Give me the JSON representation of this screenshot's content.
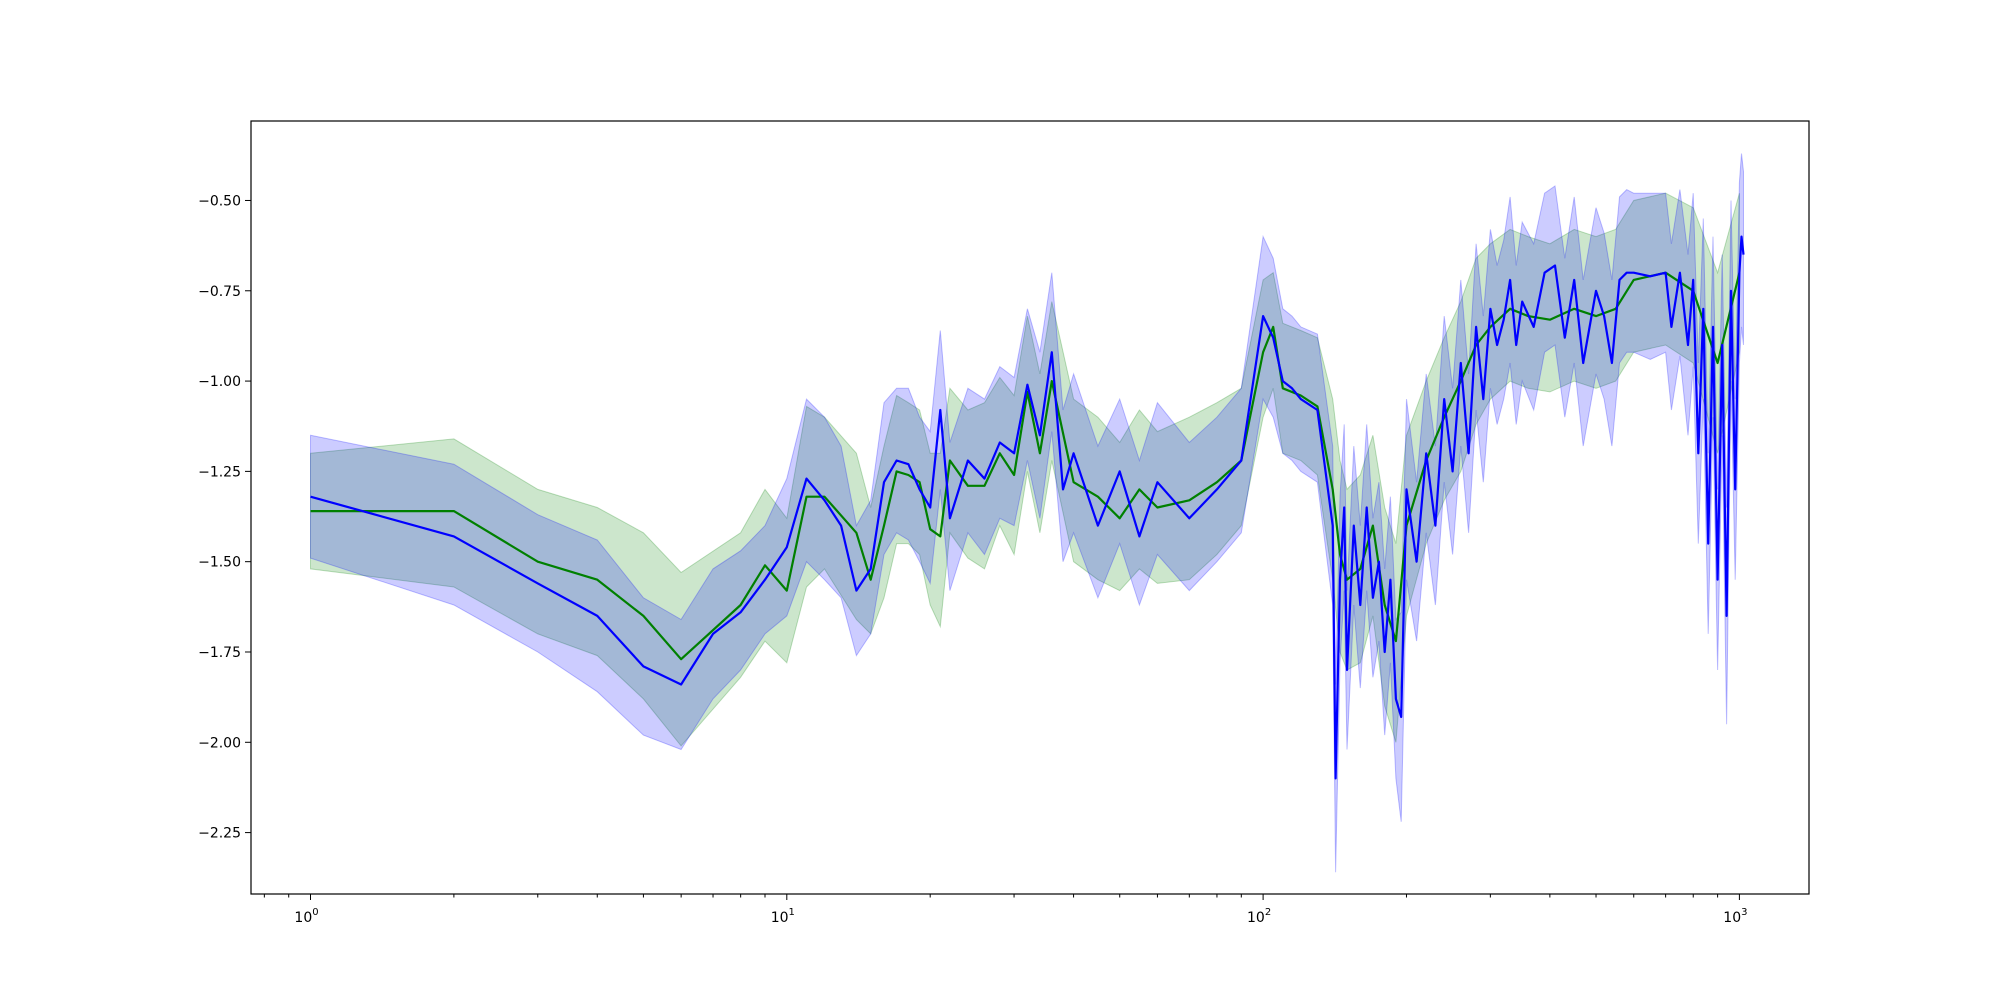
{
  "chart_data": {
    "type": "line",
    "title": "",
    "xlabel": "",
    "ylabel": "",
    "xscale": "log",
    "xlim": [
      0.75,
      1400
    ],
    "ylim": [
      -2.42,
      -0.28
    ],
    "grid": false,
    "legend": "none",
    "x_ticks": [
      {
        "value": 1,
        "base": "10",
        "exp": "0"
      },
      {
        "value": 10,
        "base": "10",
        "exp": "1"
      },
      {
        "value": 100,
        "base": "10",
        "exp": "2"
      },
      {
        "value": 1000,
        "base": "10",
        "exp": "3"
      }
    ],
    "y_ticks": [
      {
        "value": -0.5,
        "label": "−0.50"
      },
      {
        "value": -0.75,
        "label": "−0.75"
      },
      {
        "value": -1.0,
        "label": "−1.00"
      },
      {
        "value": -1.25,
        "label": "−1.25"
      },
      {
        "value": -1.5,
        "label": "−1.50"
      },
      {
        "value": -1.75,
        "label": "−1.75"
      },
      {
        "value": -2.0,
        "label": "−2.00"
      },
      {
        "value": -2.25,
        "label": "−2.25"
      }
    ],
    "series": [
      {
        "color": "#008000",
        "band_color": "#008000",
        "band_opacity": 0.2,
        "x": [
          1,
          2,
          3,
          4,
          5,
          6,
          8,
          9,
          10,
          11,
          12,
          14,
          15,
          16,
          17,
          18,
          19,
          20,
          21,
          22,
          24,
          26,
          28,
          30,
          32,
          34,
          36,
          40,
          45,
          50,
          55,
          60,
          70,
          80,
          90,
          100,
          105,
          110,
          120,
          130,
          140,
          145,
          150,
          160,
          170,
          180,
          190,
          200,
          220,
          240,
          260,
          280,
          300,
          330,
          360,
          400,
          450,
          500,
          550,
          600,
          700,
          800,
          900,
          1000
        ],
        "y": [
          -1.36,
          -1.36,
          -1.5,
          -1.55,
          -1.65,
          -1.77,
          -1.62,
          -1.51,
          -1.58,
          -1.32,
          -1.32,
          -1.42,
          -1.55,
          -1.4,
          -1.25,
          -1.26,
          -1.28,
          -1.41,
          -1.43,
          -1.22,
          -1.29,
          -1.29,
          -1.2,
          -1.26,
          -1.03,
          -1.2,
          -1.0,
          -1.28,
          -1.32,
          -1.38,
          -1.3,
          -1.35,
          -1.33,
          -1.28,
          -1.22,
          -0.92,
          -0.85,
          -1.02,
          -1.04,
          -1.07,
          -1.3,
          -1.48,
          -1.55,
          -1.52,
          -1.4,
          -1.62,
          -1.72,
          -1.4,
          -1.22,
          -1.1,
          -1.0,
          -0.9,
          -0.85,
          -0.8,
          -0.82,
          -0.83,
          -0.8,
          -0.82,
          -0.8,
          -0.72,
          -0.7,
          -0.75,
          -0.95,
          -0.7
        ],
        "lower": [
          -1.52,
          -1.57,
          -1.7,
          -1.76,
          -1.88,
          -2.01,
          -1.82,
          -1.72,
          -1.78,
          -1.57,
          -1.52,
          -1.66,
          -1.7,
          -1.6,
          -1.45,
          -1.45,
          -1.48,
          -1.62,
          -1.68,
          -1.42,
          -1.49,
          -1.52,
          -1.4,
          -1.48,
          -1.25,
          -1.42,
          -1.22,
          -1.5,
          -1.55,
          -1.58,
          -1.52,
          -1.56,
          -1.55,
          -1.48,
          -1.4,
          -1.1,
          -1.02,
          -1.2,
          -1.22,
          -1.26,
          -1.55,
          -1.75,
          -1.8,
          -1.78,
          -1.65,
          -1.9,
          -2.0,
          -1.65,
          -1.45,
          -1.33,
          -1.25,
          -1.12,
          -1.05,
          -1.0,
          -1.02,
          -1.03,
          -1.0,
          -1.02,
          -1.0,
          -0.92,
          -0.9,
          -0.95,
          -1.2,
          -0.92
        ],
        "upper": [
          -1.2,
          -1.16,
          -1.3,
          -1.35,
          -1.42,
          -1.53,
          -1.42,
          -1.3,
          -1.38,
          -1.07,
          -1.1,
          -1.2,
          -1.35,
          -1.18,
          -1.04,
          -1.06,
          -1.08,
          -1.2,
          -1.2,
          -1.02,
          -1.08,
          -1.06,
          -0.99,
          -1.04,
          -0.82,
          -0.98,
          -0.78,
          -1.05,
          -1.1,
          -1.17,
          -1.08,
          -1.14,
          -1.1,
          -1.06,
          -1.02,
          -0.72,
          -0.7,
          -0.84,
          -0.86,
          -0.88,
          -1.05,
          -1.22,
          -1.3,
          -1.26,
          -1.15,
          -1.35,
          -1.45,
          -1.15,
          -1.0,
          -0.88,
          -0.78,
          -0.66,
          -0.62,
          -0.58,
          -0.6,
          -0.62,
          -0.58,
          -0.6,
          -0.58,
          -0.5,
          -0.48,
          -0.52,
          -0.7,
          -0.48
        ]
      },
      {
        "color": "#0000ff",
        "band_color": "#0000ff",
        "band_opacity": 0.2,
        "x": [
          1,
          2,
          3,
          4,
          5,
          6,
          7,
          8,
          9,
          10,
          11,
          12,
          13,
          14,
          15,
          16,
          17,
          18,
          19,
          20,
          21,
          22,
          24,
          26,
          28,
          30,
          32,
          34,
          36,
          38,
          40,
          45,
          50,
          55,
          60,
          70,
          80,
          90,
          100,
          105,
          110,
          115,
          120,
          130,
          140,
          142,
          145,
          148,
          150,
          155,
          160,
          165,
          170,
          175,
          180,
          185,
          190,
          195,
          200,
          210,
          220,
          230,
          240,
          250,
          260,
          270,
          280,
          290,
          300,
          310,
          320,
          330,
          340,
          350,
          370,
          390,
          410,
          430,
          450,
          470,
          500,
          520,
          540,
          560,
          580,
          600,
          650,
          700,
          720,
          750,
          780,
          800,
          820,
          840,
          860,
          880,
          900,
          920,
          940,
          960,
          980,
          1000,
          1010,
          1020
        ],
        "y": [
          -1.32,
          -1.43,
          -1.56,
          -1.65,
          -1.79,
          -1.84,
          -1.7,
          -1.64,
          -1.55,
          -1.46,
          -1.27,
          -1.33,
          -1.4,
          -1.58,
          -1.52,
          -1.28,
          -1.22,
          -1.23,
          -1.3,
          -1.35,
          -1.08,
          -1.38,
          -1.22,
          -1.27,
          -1.17,
          -1.2,
          -1.01,
          -1.15,
          -0.92,
          -1.3,
          -1.2,
          -1.4,
          -1.25,
          -1.43,
          -1.28,
          -1.38,
          -1.3,
          -1.22,
          -0.82,
          -0.88,
          -1.0,
          -1.02,
          -1.05,
          -1.08,
          -1.4,
          -2.1,
          -1.55,
          -1.35,
          -1.8,
          -1.4,
          -1.62,
          -1.35,
          -1.6,
          -1.5,
          -1.75,
          -1.55,
          -1.88,
          -1.93,
          -1.3,
          -1.5,
          -1.2,
          -1.4,
          -1.05,
          -1.25,
          -0.95,
          -1.2,
          -0.85,
          -1.05,
          -0.8,
          -0.9,
          -0.83,
          -0.72,
          -0.9,
          -0.78,
          -0.85,
          -0.7,
          -0.68,
          -0.88,
          -0.72,
          -0.95,
          -0.75,
          -0.82,
          -0.95,
          -0.72,
          -0.7,
          -0.7,
          -0.71,
          -0.7,
          -0.85,
          -0.7,
          -0.9,
          -0.72,
          -1.2,
          -0.8,
          -1.45,
          -0.85,
          -1.55,
          -0.9,
          -1.65,
          -0.75,
          -1.3,
          -0.7,
          -0.6,
          -0.65
        ],
        "lower": [
          -1.49,
          -1.62,
          -1.75,
          -1.86,
          -1.98,
          -2.02,
          -1.88,
          -1.8,
          -1.7,
          -1.65,
          -1.5,
          -1.55,
          -1.6,
          -1.76,
          -1.7,
          -1.48,
          -1.42,
          -1.44,
          -1.5,
          -1.56,
          -1.3,
          -1.58,
          -1.42,
          -1.48,
          -1.38,
          -1.4,
          -1.22,
          -1.38,
          -1.14,
          -1.5,
          -1.42,
          -1.6,
          -1.45,
          -1.62,
          -1.48,
          -1.58,
          -1.5,
          -1.42,
          -1.05,
          -1.1,
          -1.2,
          -1.22,
          -1.25,
          -1.28,
          -1.62,
          -2.36,
          -1.78,
          -1.58,
          -2.02,
          -1.62,
          -1.85,
          -1.58,
          -1.82,
          -1.72,
          -1.98,
          -1.78,
          -2.1,
          -2.22,
          -1.55,
          -1.72,
          -1.42,
          -1.62,
          -1.28,
          -1.48,
          -1.18,
          -1.42,
          -1.08,
          -1.28,
          -1.02,
          -1.12,
          -1.05,
          -0.95,
          -1.12,
          -1.0,
          -1.08,
          -0.92,
          -0.9,
          -1.1,
          -0.95,
          -1.18,
          -0.98,
          -1.05,
          -1.18,
          -0.95,
          -0.92,
          -0.92,
          -0.94,
          -0.92,
          -1.08,
          -0.93,
          -1.15,
          -0.96,
          -1.45,
          -1.05,
          -1.7,
          -1.1,
          -1.8,
          -1.15,
          -1.95,
          -1.0,
          -1.55,
          -0.95,
          -0.85,
          -0.9
        ],
        "upper": [
          -1.15,
          -1.23,
          -1.37,
          -1.44,
          -1.6,
          -1.66,
          -1.52,
          -1.47,
          -1.4,
          -1.27,
          -1.05,
          -1.1,
          -1.18,
          -1.4,
          -1.33,
          -1.06,
          -1.02,
          -1.02,
          -1.1,
          -1.14,
          -0.86,
          -1.17,
          -1.02,
          -1.05,
          -0.96,
          -0.99,
          -0.8,
          -0.92,
          -0.7,
          -1.08,
          -0.98,
          -1.18,
          -1.05,
          -1.22,
          -1.06,
          -1.17,
          -1.1,
          -1.02,
          -0.6,
          -0.66,
          -0.8,
          -0.82,
          -0.85,
          -0.87,
          -1.18,
          -1.84,
          -1.32,
          -1.12,
          -1.58,
          -1.18,
          -1.4,
          -1.12,
          -1.38,
          -1.28,
          -1.52,
          -1.32,
          -1.66,
          -1.64,
          -1.05,
          -1.28,
          -0.98,
          -1.18,
          -0.82,
          -1.02,
          -0.72,
          -0.98,
          -0.62,
          -0.82,
          -0.58,
          -0.68,
          -0.61,
          -0.49,
          -0.68,
          -0.56,
          -0.62,
          -0.48,
          -0.46,
          -0.66,
          -0.49,
          -0.72,
          -0.52,
          -0.59,
          -0.72,
          -0.49,
          -0.47,
          -0.48,
          -0.48,
          -0.48,
          -0.62,
          -0.47,
          -0.65,
          -0.48,
          -0.95,
          -0.55,
          -1.2,
          -0.6,
          -1.3,
          -0.65,
          -1.35,
          -0.5,
          -1.05,
          -0.45,
          -0.37,
          -0.42
        ]
      }
    ]
  }
}
